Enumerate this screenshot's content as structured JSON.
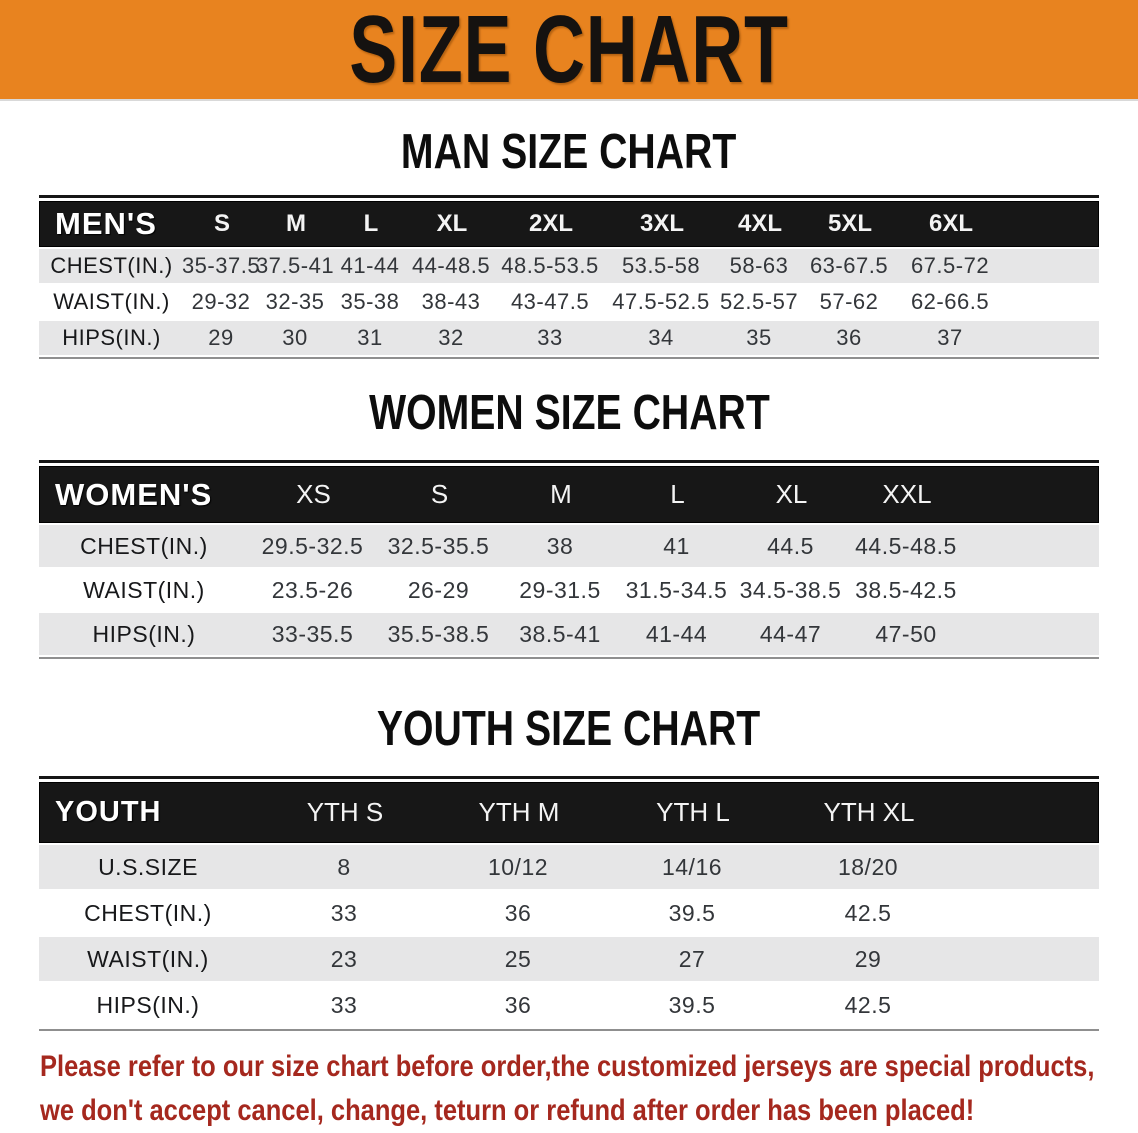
{
  "banner": {
    "title": "SIZE CHART",
    "bg": "#E8831F"
  },
  "sections": [
    {
      "key": "men",
      "heading": "MAN SIZE CHART",
      "table": {
        "label": "MEN'S",
        "columns": [
          "S",
          "M",
          "L",
          "XL",
          "2XL",
          "3XL",
          "4XL",
          "5XL",
          "6XL"
        ],
        "rows": [
          {
            "label": "CHEST(IN.)",
            "values": [
              "35-37.5",
              "37.5-41",
              "41-44",
              "44-48.5",
              "48.5-53.5",
              "53.5-58",
              "58-63",
              "63-67.5",
              "67.5-72"
            ]
          },
          {
            "label": "WAIST(IN.)",
            "values": [
              "29-32",
              "32-35",
              "35-38",
              "38-43",
              "43-47.5",
              "47.5-52.5",
              "52.5-57",
              "57-62",
              "62-66.5"
            ]
          },
          {
            "label": "HIPS(IN.)",
            "values": [
              "29",
              "30",
              "31",
              "32",
              "33",
              "34",
              "35",
              "36",
              "37"
            ]
          }
        ]
      }
    },
    {
      "key": "women",
      "heading": "WOMEN SIZE CHART",
      "table": {
        "label": "WOMEN'S",
        "columns": [
          "XS",
          "S",
          "M",
          "L",
          "XL",
          "XXL"
        ],
        "rows": [
          {
            "label": "CHEST(IN.)",
            "values": [
              "29.5-32.5",
              "32.5-35.5",
              "38",
              "41",
              "44.5",
              "44.5-48.5"
            ]
          },
          {
            "label": "WAIST(IN.)",
            "values": [
              "23.5-26",
              "26-29",
              "29-31.5",
              "31.5-34.5",
              "34.5-38.5",
              "38.5-42.5"
            ]
          },
          {
            "label": "HIPS(IN.)",
            "values": [
              "33-35.5",
              "35.5-38.5",
              "38.5-41",
              "41-44",
              "44-47",
              "47-50"
            ]
          }
        ]
      }
    },
    {
      "key": "youth",
      "heading": "YOUTH SIZE CHART",
      "table": {
        "label": "YOUTH",
        "columns": [
          "YTH S",
          "YTH M",
          "YTH L",
          "YTH XL"
        ],
        "rows": [
          {
            "label": "U.S.SIZE",
            "values": [
              "8",
              "10/12",
              "14/16",
              "18/20"
            ]
          },
          {
            "label": "CHEST(IN.)",
            "values": [
              "33",
              "36",
              "39.5",
              "42.5"
            ]
          },
          {
            "label": "WAIST(IN.)",
            "values": [
              "23",
              "25",
              "27",
              "29"
            ]
          },
          {
            "label": "HIPS(IN.)",
            "values": [
              "33",
              "36",
              "39.5",
              "42.5"
            ]
          }
        ]
      }
    }
  ],
  "disclaimer": {
    "color": "#A5281E",
    "line1": "Please refer to our size chart before order,the customized jerseys are special products,",
    "line2": "we don't accept cancel, change, teturn or refund after order has been placed!"
  }
}
